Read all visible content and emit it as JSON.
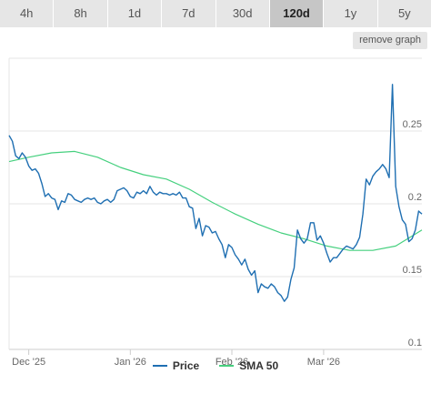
{
  "range_tabs": [
    {
      "label": "4h",
      "active": false
    },
    {
      "label": "8h",
      "active": false
    },
    {
      "label": "1d",
      "active": false
    },
    {
      "label": "7d",
      "active": false
    },
    {
      "label": "30d",
      "active": false
    },
    {
      "label": "120d",
      "active": true
    },
    {
      "label": "1y",
      "active": false
    },
    {
      "label": "5y",
      "active": false
    }
  ],
  "remove_graph_label": "remove graph",
  "chart_data": {
    "type": "line",
    "title": "",
    "xlabel": "",
    "ylabel": "",
    "ylim": [
      0.1,
      0.3
    ],
    "y_ticks": [
      "0.1",
      "0.15",
      "0.2",
      "0.25"
    ],
    "y_tick_values": [
      0.1,
      0.15,
      0.2,
      0.25
    ],
    "x_domain": [
      "2025-11-25",
      "2026-03-31"
    ],
    "x_ticks": [
      {
        "date": "2025-12-01",
        "label": "Dec '25"
      },
      {
        "date": "2026-01-01",
        "label": "Jan '26"
      },
      {
        "date": "2026-02-01",
        "label": "Feb '26"
      },
      {
        "date": "2026-03-01",
        "label": "Mar '26"
      }
    ],
    "grid": true,
    "legend_position": "bottom-center",
    "series": [
      {
        "name": "Price",
        "color": "#1f6fb2",
        "points": [
          [
            "2025-11-25",
            0.247
          ],
          [
            "2025-11-26",
            0.243
          ],
          [
            "2025-11-27",
            0.233
          ],
          [
            "2025-11-28",
            0.231
          ],
          [
            "2025-11-29",
            0.235
          ],
          [
            "2025-11-30",
            0.232
          ],
          [
            "2025-12-01",
            0.226
          ],
          [
            "2025-12-02",
            0.223
          ],
          [
            "2025-12-03",
            0.224
          ],
          [
            "2025-12-04",
            0.221
          ],
          [
            "2025-12-05",
            0.214
          ],
          [
            "2025-12-06",
            0.205
          ],
          [
            "2025-12-07",
            0.207
          ],
          [
            "2025-12-08",
            0.204
          ],
          [
            "2025-12-09",
            0.203
          ],
          [
            "2025-12-10",
            0.196
          ],
          [
            "2025-12-11",
            0.202
          ],
          [
            "2025-12-12",
            0.201
          ],
          [
            "2025-12-13",
            0.207
          ],
          [
            "2025-12-14",
            0.206
          ],
          [
            "2025-12-15",
            0.203
          ],
          [
            "2025-12-16",
            0.202
          ],
          [
            "2025-12-17",
            0.201
          ],
          [
            "2025-12-18",
            0.203
          ],
          [
            "2025-12-19",
            0.204
          ],
          [
            "2025-12-20",
            0.203
          ],
          [
            "2025-12-21",
            0.204
          ],
          [
            "2025-12-22",
            0.201
          ],
          [
            "2025-12-23",
            0.2
          ],
          [
            "2025-12-24",
            0.202
          ],
          [
            "2025-12-25",
            0.203
          ],
          [
            "2025-12-26",
            0.201
          ],
          [
            "2025-12-27",
            0.203
          ],
          [
            "2025-12-28",
            0.209
          ],
          [
            "2025-12-29",
            0.21
          ],
          [
            "2025-12-30",
            0.211
          ],
          [
            "2025-12-31",
            0.209
          ],
          [
            "2026-01-01",
            0.205
          ],
          [
            "2026-01-02",
            0.204
          ],
          [
            "2026-01-03",
            0.208
          ],
          [
            "2026-01-04",
            0.207
          ],
          [
            "2026-01-05",
            0.209
          ],
          [
            "2026-01-06",
            0.207
          ],
          [
            "2026-01-07",
            0.212
          ],
          [
            "2026-01-08",
            0.208
          ],
          [
            "2026-01-09",
            0.206
          ],
          [
            "2026-01-10",
            0.208
          ],
          [
            "2026-01-11",
            0.207
          ],
          [
            "2026-01-12",
            0.207
          ],
          [
            "2026-01-13",
            0.206
          ],
          [
            "2026-01-14",
            0.207
          ],
          [
            "2026-01-15",
            0.206
          ],
          [
            "2026-01-16",
            0.208
          ],
          [
            "2026-01-17",
            0.204
          ],
          [
            "2026-01-18",
            0.204
          ],
          [
            "2026-01-19",
            0.198
          ],
          [
            "2026-01-20",
            0.197
          ],
          [
            "2026-01-21",
            0.183
          ],
          [
            "2026-01-22",
            0.19
          ],
          [
            "2026-01-23",
            0.178
          ],
          [
            "2026-01-24",
            0.185
          ],
          [
            "2026-01-25",
            0.184
          ],
          [
            "2026-01-26",
            0.18
          ],
          [
            "2026-01-27",
            0.181
          ],
          [
            "2026-01-28",
            0.176
          ],
          [
            "2026-01-29",
            0.172
          ],
          [
            "2026-01-30",
            0.163
          ],
          [
            "2026-01-31",
            0.172
          ],
          [
            "2026-02-01",
            0.17
          ],
          [
            "2026-02-02",
            0.165
          ],
          [
            "2026-02-03",
            0.162
          ],
          [
            "2026-02-04",
            0.158
          ],
          [
            "2026-02-05",
            0.162
          ],
          [
            "2026-02-06",
            0.155
          ],
          [
            "2026-02-07",
            0.151
          ],
          [
            "2026-02-08",
            0.154
          ],
          [
            "2026-02-09",
            0.139
          ],
          [
            "2026-02-10",
            0.145
          ],
          [
            "2026-02-11",
            0.143
          ],
          [
            "2026-02-12",
            0.142
          ],
          [
            "2026-02-13",
            0.145
          ],
          [
            "2026-02-14",
            0.143
          ],
          [
            "2026-02-15",
            0.139
          ],
          [
            "2026-02-16",
            0.137
          ],
          [
            "2026-02-17",
            0.133
          ],
          [
            "2026-02-18",
            0.136
          ],
          [
            "2026-02-19",
            0.148
          ],
          [
            "2026-02-20",
            0.156
          ],
          [
            "2026-02-21",
            0.182
          ],
          [
            "2026-02-22",
            0.176
          ],
          [
            "2026-02-23",
            0.173
          ],
          [
            "2026-02-24",
            0.176
          ],
          [
            "2026-02-25",
            0.187
          ],
          [
            "2026-02-26",
            0.187
          ],
          [
            "2026-02-27",
            0.175
          ],
          [
            "2026-02-28",
            0.178
          ],
          [
            "2026-03-01",
            0.173
          ],
          [
            "2026-03-02",
            0.166
          ],
          [
            "2026-03-03",
            0.16
          ],
          [
            "2026-03-04",
            0.163
          ],
          [
            "2026-03-05",
            0.163
          ],
          [
            "2026-03-06",
            0.166
          ],
          [
            "2026-03-07",
            0.169
          ],
          [
            "2026-03-08",
            0.171
          ],
          [
            "2026-03-09",
            0.17
          ],
          [
            "2026-03-10",
            0.169
          ],
          [
            "2026-03-11",
            0.172
          ],
          [
            "2026-03-12",
            0.177
          ],
          [
            "2026-03-13",
            0.193
          ],
          [
            "2026-03-14",
            0.217
          ],
          [
            "2026-03-15",
            0.213
          ],
          [
            "2026-03-16",
            0.219
          ],
          [
            "2026-03-17",
            0.222
          ],
          [
            "2026-03-18",
            0.224
          ],
          [
            "2026-03-19",
            0.227
          ],
          [
            "2026-03-20",
            0.224
          ],
          [
            "2026-03-21",
            0.218
          ],
          [
            "2026-03-22",
            0.282
          ],
          [
            "2026-03-23",
            0.212
          ],
          [
            "2026-03-24",
            0.198
          ],
          [
            "2026-03-25",
            0.189
          ],
          [
            "2026-03-26",
            0.186
          ],
          [
            "2026-03-27",
            0.174
          ],
          [
            "2026-03-28",
            0.176
          ],
          [
            "2026-03-29",
            0.182
          ],
          [
            "2026-03-30",
            0.195
          ],
          [
            "2026-03-30T12",
            0.194
          ],
          [
            "2026-03-31",
            0.193
          ]
        ]
      },
      {
        "name": "SMA 50",
        "color": "#45d07e",
        "points": [
          [
            "2025-11-25",
            0.229
          ],
          [
            "2025-12-01",
            0.232
          ],
          [
            "2025-12-08",
            0.235
          ],
          [
            "2025-12-15",
            0.236
          ],
          [
            "2025-12-22",
            0.232
          ],
          [
            "2025-12-29",
            0.225
          ],
          [
            "2026-01-05",
            0.22
          ],
          [
            "2026-01-12",
            0.217
          ],
          [
            "2026-01-19",
            0.21
          ],
          [
            "2026-01-26",
            0.201
          ],
          [
            "2026-02-02",
            0.193
          ],
          [
            "2026-02-09",
            0.186
          ],
          [
            "2026-02-16",
            0.18
          ],
          [
            "2026-02-23",
            0.176
          ],
          [
            "2026-03-02",
            0.171
          ],
          [
            "2026-03-09",
            0.168
          ],
          [
            "2026-03-16",
            0.168
          ],
          [
            "2026-03-23",
            0.171
          ],
          [
            "2026-03-31",
            0.182
          ]
        ]
      }
    ]
  }
}
